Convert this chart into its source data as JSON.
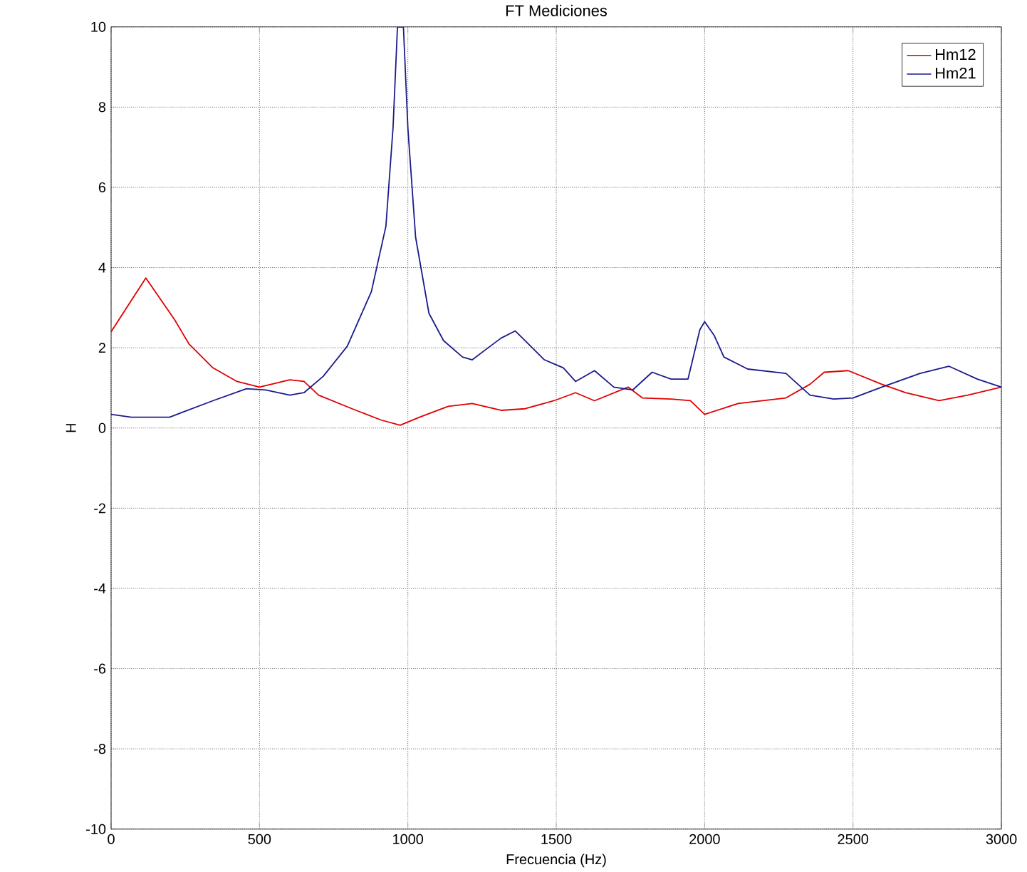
{
  "chart_data": {
    "type": "line",
    "title": "FT Mediciones",
    "xlabel": "Frecuencia (Hz)",
    "ylabel": "H",
    "xlim": [
      0,
      3000
    ],
    "ylim": [
      -10,
      10
    ],
    "xticks": [
      0,
      500,
      1000,
      1500,
      2000,
      2500,
      3000
    ],
    "yticks": [
      -10,
      -8,
      -6,
      -4,
      -2,
      0,
      2,
      4,
      6,
      8,
      10
    ],
    "grid": true,
    "legend": "top right",
    "line_style": "solid",
    "series": [
      {
        "name": "Hm12",
        "color": "#e00000",
        "x": [
          0,
          117,
          214,
          262,
          343,
          424,
          500,
          602,
          650,
          699,
          812,
          909,
          974,
          1039,
          1136,
          1217,
          1314,
          1395,
          1492,
          1565,
          1629,
          1742,
          1790,
          1887,
          1952,
          2000,
          2113,
          2274,
          2355,
          2403,
          2484,
          2597,
          2677,
          2790,
          2887,
          3000
        ],
        "values": [
          2.4,
          3.74,
          2.7,
          2.1,
          1.5,
          1.16,
          1.02,
          1.2,
          1.16,
          0.82,
          0.48,
          0.2,
          0.07,
          0.27,
          0.54,
          0.61,
          0.44,
          0.48,
          0.68,
          0.88,
          0.68,
          1.02,
          0.75,
          0.72,
          0.68,
          0.34,
          0.61,
          0.75,
          1.09,
          1.39,
          1.43,
          1.09,
          0.88,
          0.68,
          0.82,
          1.02
        ]
      },
      {
        "name": "Hm21",
        "color": "#1a1a8c",
        "x": [
          0,
          68,
          197,
          343,
          456,
          521,
          602,
          650,
          715,
          796,
          877,
          926,
          950,
          965,
          985,
          1000,
          1026,
          1071,
          1120,
          1184,
          1217,
          1265,
          1314,
          1362,
          1395,
          1460,
          1524,
          1565,
          1629,
          1694,
          1758,
          1823,
          1887,
          1944,
          1984,
          2000,
          2032,
          2065,
          2145,
          2274,
          2355,
          2435,
          2500,
          2597,
          2726,
          2823,
          2919,
          3000
        ],
        "values": [
          0.34,
          0.27,
          0.27,
          0.68,
          0.98,
          0.95,
          0.82,
          0.88,
          1.29,
          2.04,
          3.4,
          5.03,
          7.48,
          10,
          10,
          7.48,
          4.76,
          2.86,
          2.18,
          1.77,
          1.7,
          1.97,
          2.24,
          2.42,
          2.18,
          1.7,
          1.5,
          1.16,
          1.43,
          1.02,
          0.95,
          1.39,
          1.22,
          1.22,
          2.45,
          2.65,
          2.31,
          1.77,
          1.47,
          1.36,
          0.82,
          0.72,
          0.75,
          1.02,
          1.36,
          1.54,
          1.22,
          1.02
        ]
      }
    ]
  }
}
